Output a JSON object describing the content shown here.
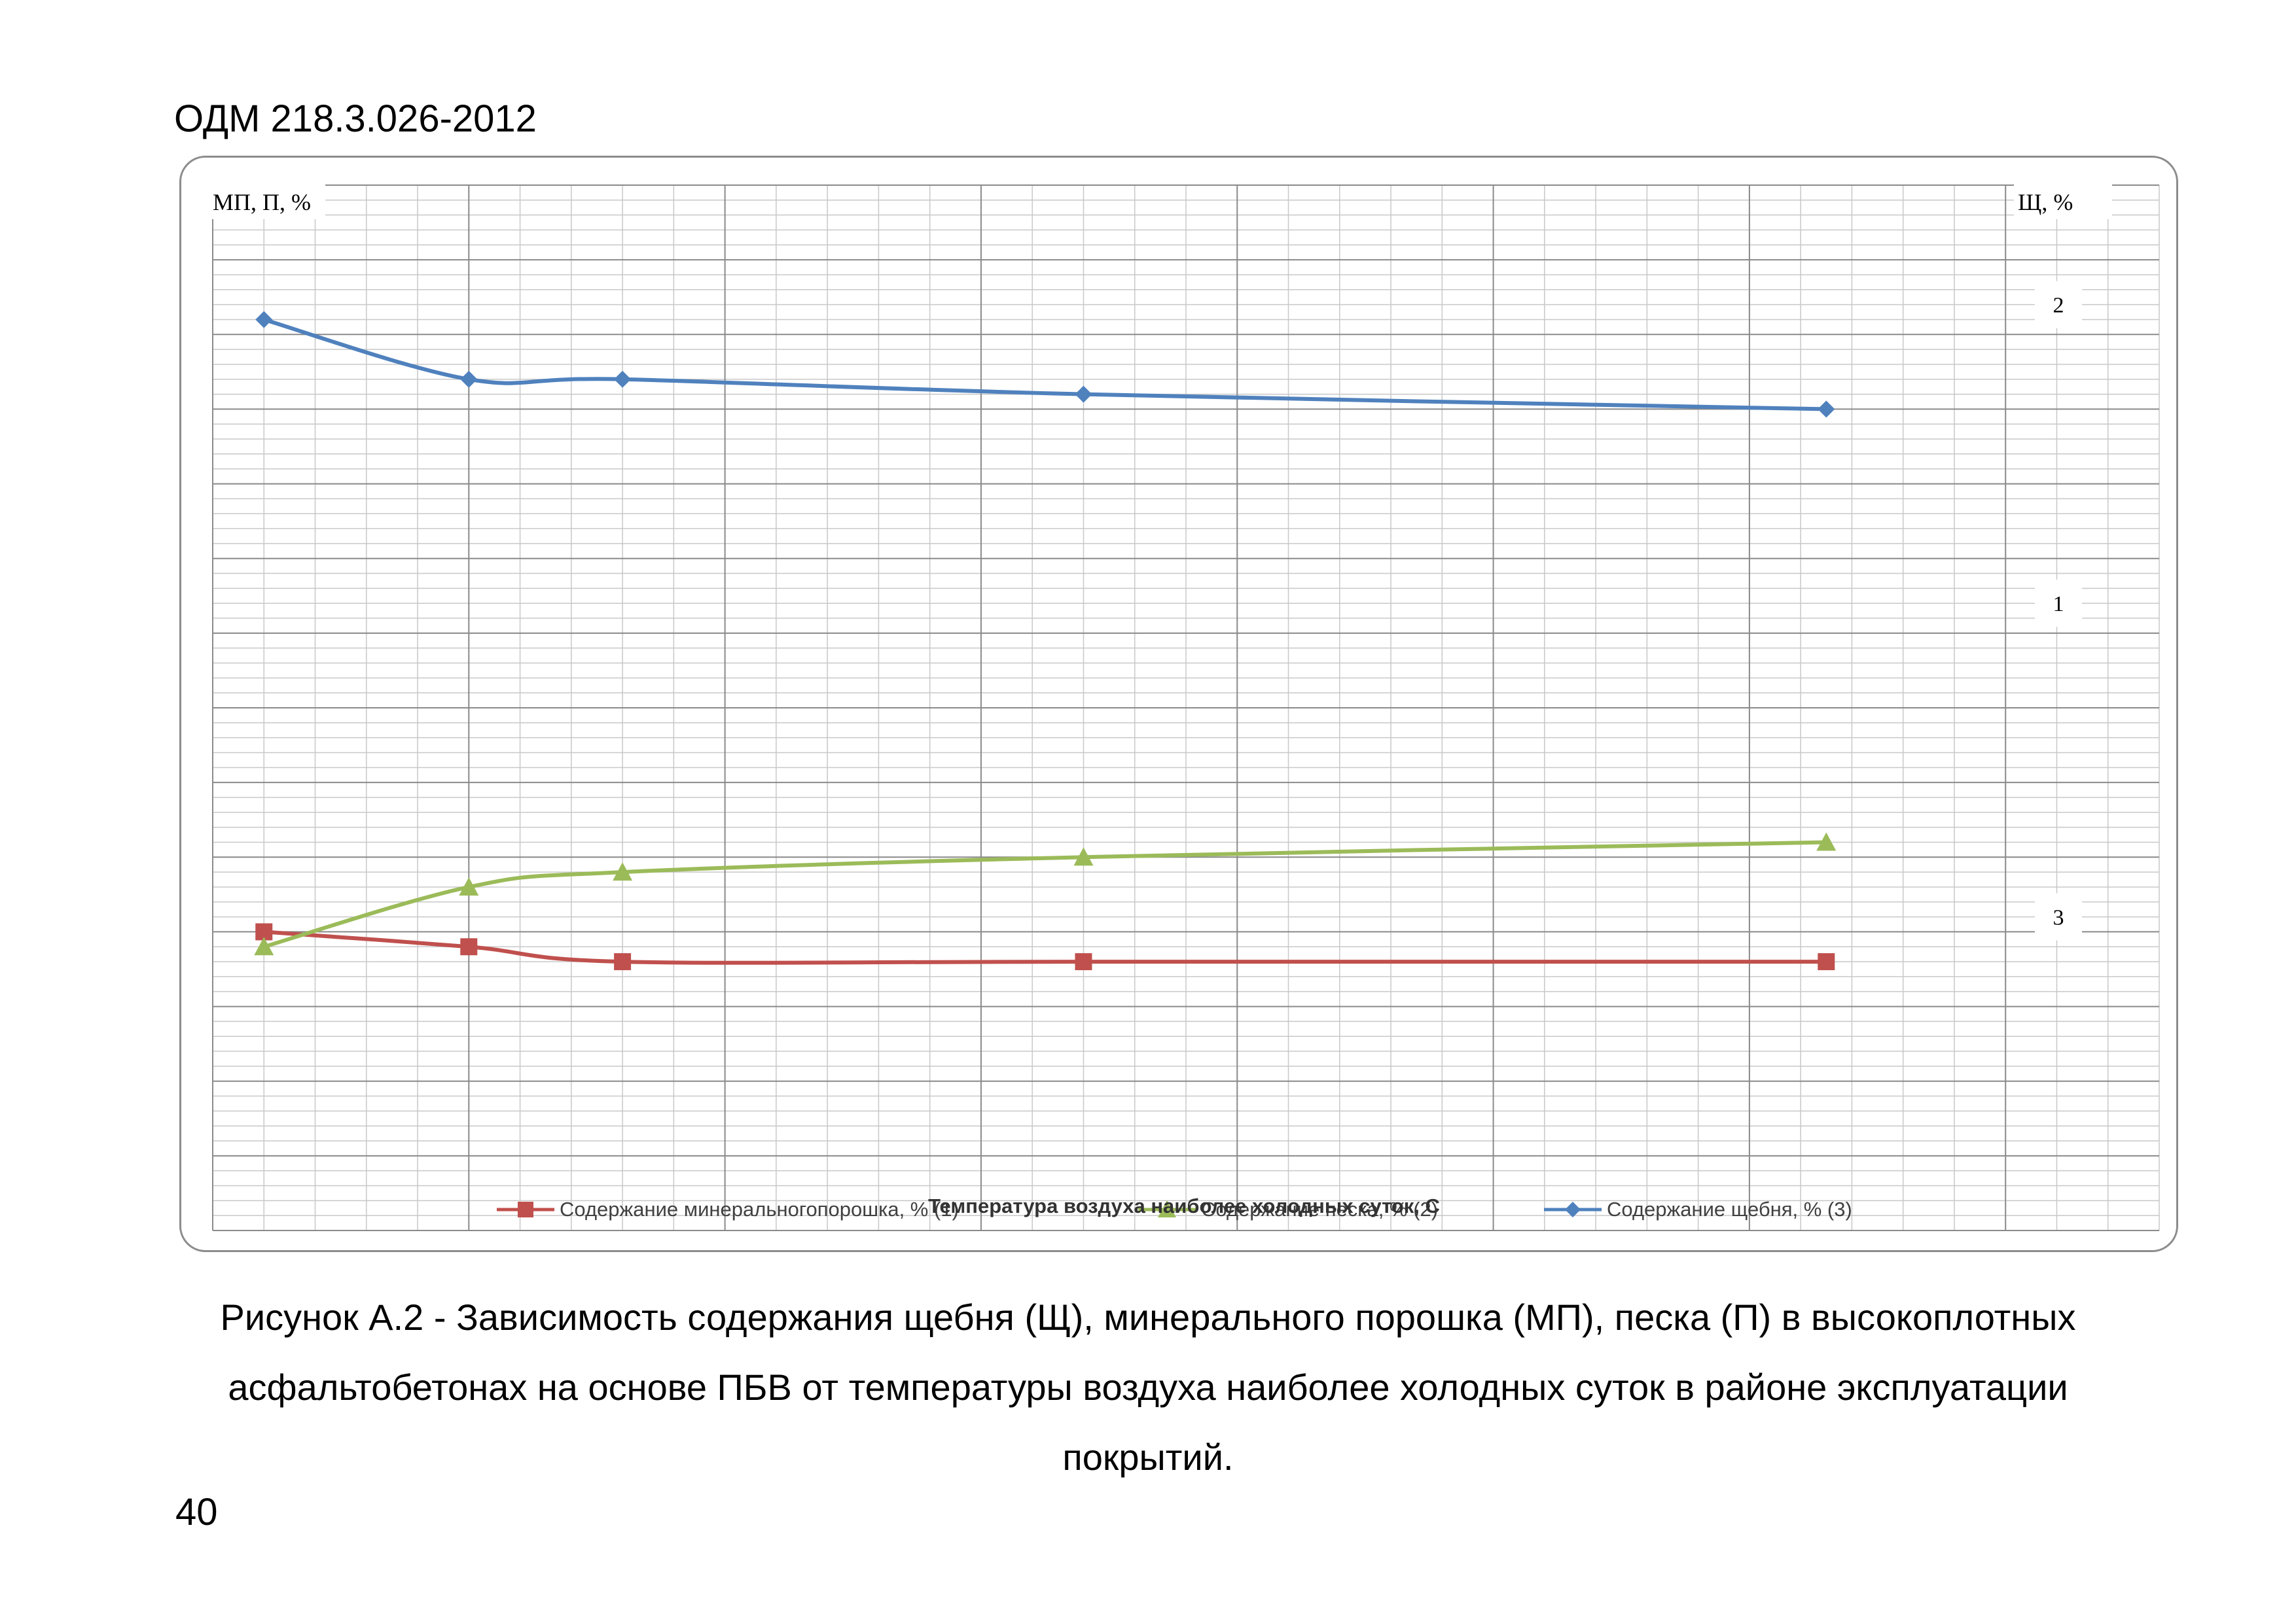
{
  "document": {
    "header": "ОДМ 218.3.026-2012",
    "caption": "Рисунок А.2 - Зависимость содержания щебня (Щ), минерального порошка (МП), песка (П) в высокоплотных асфальтобетонах на основе ПБВ от температуры воздуха наиболее холодных суток в районе эксплуатации покрытий.",
    "page_number": "40"
  },
  "chart_data": {
    "type": "line",
    "xlabel": "Температура воздуха наиболее холодных суток, С",
    "ylabel_left": "МП, П, %",
    "ylabel_right": "Щ, %",
    "curve_labels": [
      "2",
      "1",
      "3"
    ],
    "x_domain": [
      -40,
      36
    ],
    "y_domain": [
      0,
      70
    ],
    "x": [
      -38,
      -30,
      -24,
      -6,
      23
    ],
    "grid": true,
    "legend_position": "bottom",
    "series": [
      {
        "name": "Содержание минеральногопорошка, % (1)",
        "marker": "square",
        "color": "#c0504d",
        "values": [
          20,
          19,
          18,
          18,
          18
        ]
      },
      {
        "name": "Содержание песка, % (2)",
        "marker": "triangle",
        "color": "#9bbb59",
        "values": [
          19,
          23,
          24,
          25,
          26
        ]
      },
      {
        "name": "Содержание щебня, % (3)",
        "marker": "diamond",
        "color": "#4f81bd",
        "values": [
          61,
          57,
          57,
          56,
          55
        ]
      }
    ]
  }
}
